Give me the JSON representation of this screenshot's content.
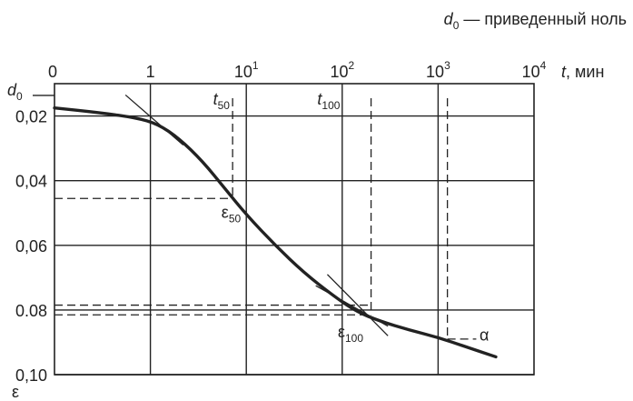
{
  "chart_data": {
    "type": "line",
    "title": "d0 — приведенный ноль",
    "title_parts": {
      "symbol": "d",
      "sub": "0",
      "rest": " — приведенный ноль"
    },
    "x_axis": {
      "scale": "log",
      "label": "t, мин",
      "label_parts": {
        "italic": "t",
        "rest": ", мин"
      },
      "range": [
        0.1,
        10000
      ],
      "ticks": [
        {
          "value": 0.1,
          "base": "0",
          "exp": ""
        },
        {
          "value": 1,
          "base": "1",
          "exp": ""
        },
        {
          "value": 10,
          "base": "10",
          "exp": "1"
        },
        {
          "value": 100,
          "base": "10",
          "exp": "2"
        },
        {
          "value": 1000,
          "base": "10",
          "exp": "3"
        },
        {
          "value": 10000,
          "base": "10",
          "exp": "4"
        }
      ],
      "position": "top"
    },
    "y_axis": {
      "label": "ε",
      "range": [
        0.01,
        0.1
      ],
      "inverted": true,
      "ticks": [
        {
          "value": 0.02,
          "label": "0,02"
        },
        {
          "value": 0.04,
          "label": "0,04"
        },
        {
          "value": 0.06,
          "label": "0,06"
        },
        {
          "value": 0.08,
          "label": "0.08"
        },
        {
          "value": 0.1,
          "label": "0,10"
        }
      ],
      "d0_label": {
        "symbol": "d",
        "sub": "0",
        "value": 0.0125
      }
    },
    "grid": true,
    "series": [
      {
        "x": [
          0.1,
          0.3,
          0.7,
          1.2,
          2,
          3.5,
          6,
          10,
          20,
          40,
          80,
          140,
          250,
          500,
          1000,
          2000,
          4000
        ],
        "y": [
          0.0175,
          0.019,
          0.0205,
          0.0225,
          0.027,
          0.034,
          0.0425,
          0.0505,
          0.06,
          0.0685,
          0.0755,
          0.0805,
          0.0835,
          0.0862,
          0.0885,
          0.0915,
          0.0945
        ]
      }
    ],
    "construction_lines": [
      {
        "kind": "tangent",
        "x": [
          0.55,
          2.2
        ],
        "y": [
          0.0135,
          0.029
        ]
      },
      {
        "kind": "tangent",
        "x": [
          53,
          300
        ],
        "y": [
          0.0725,
          0.085
        ]
      },
      {
        "kind": "tangent",
        "x": [
          70,
          300
        ],
        "y": [
          0.069,
          0.088
        ]
      },
      {
        "kind": "dashed",
        "x": [
          7.2,
          7.2
        ],
        "y": [
          0.0145,
          0.0455
        ]
      },
      {
        "kind": "dashed",
        "x": [
          0.1,
          7.2
        ],
        "y": [
          0.0455,
          0.0455
        ]
      },
      {
        "kind": "dashed",
        "x": [
          0.1,
          200
        ],
        "y": [
          0.0785,
          0.0785
        ]
      },
      {
        "kind": "dashed",
        "x": [
          200,
          200
        ],
        "y": [
          0.0145,
          0.0815
        ]
      },
      {
        "kind": "dashed",
        "x": [
          0.1,
          200
        ],
        "y": [
          0.0815,
          0.0815
        ]
      },
      {
        "kind": "dashed",
        "x": [
          1250,
          1250
        ],
        "y": [
          0.0145,
          0.089
        ]
      },
      {
        "kind": "dashed",
        "x": [
          1250,
          2500
        ],
        "y": [
          0.089,
          0.089
        ]
      }
    ],
    "annotations": [
      {
        "symbol": "t",
        "sub": "50",
        "x": 4.5,
        "y": 0.0165
      },
      {
        "symbol": "t",
        "sub": "100",
        "x": 55,
        "y": 0.0165
      },
      {
        "symbol": "ε",
        "sub": "50",
        "x": 5.5,
        "y": 0.0515
      },
      {
        "symbol": "ε",
        "sub": "100",
        "x": 90,
        "y": 0.0885
      },
      {
        "symbol": "α",
        "sub": "",
        "x": 2700,
        "y": 0.0895
      }
    ]
  }
}
